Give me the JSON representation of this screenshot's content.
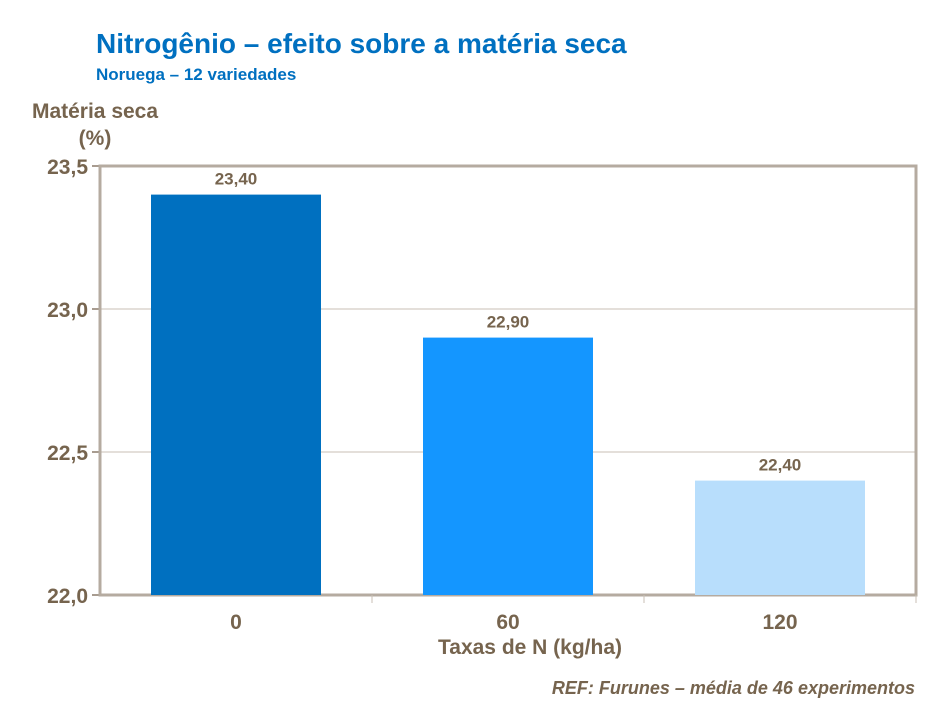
{
  "chart_data": {
    "type": "bar",
    "title": "Nitrogênio – efeito sobre a matéria seca",
    "subtitle": "Noruega – 12 variedades",
    "xlabel": "Taxas de N (kg/ha)",
    "ylabel_line1": "Matéria seca",
    "ylabel_line2": "(%)",
    "categories": [
      "0",
      "60",
      "120"
    ],
    "values": [
      23.4,
      22.9,
      22.4
    ],
    "data_labels": [
      "23,40",
      "22,90",
      "22,40"
    ],
    "ylim": [
      22.0,
      23.5
    ],
    "yticks": [
      22.0,
      22.5,
      23.0,
      23.5
    ],
    "ytick_labels": [
      "22,0",
      "22,5",
      "23,0",
      "23,5"
    ],
    "grid": true,
    "colors": [
      "#0070C0",
      "#1496FF",
      "#B8DEFC"
    ],
    "note": "REF: Furunes – média de 46 experimentos"
  }
}
